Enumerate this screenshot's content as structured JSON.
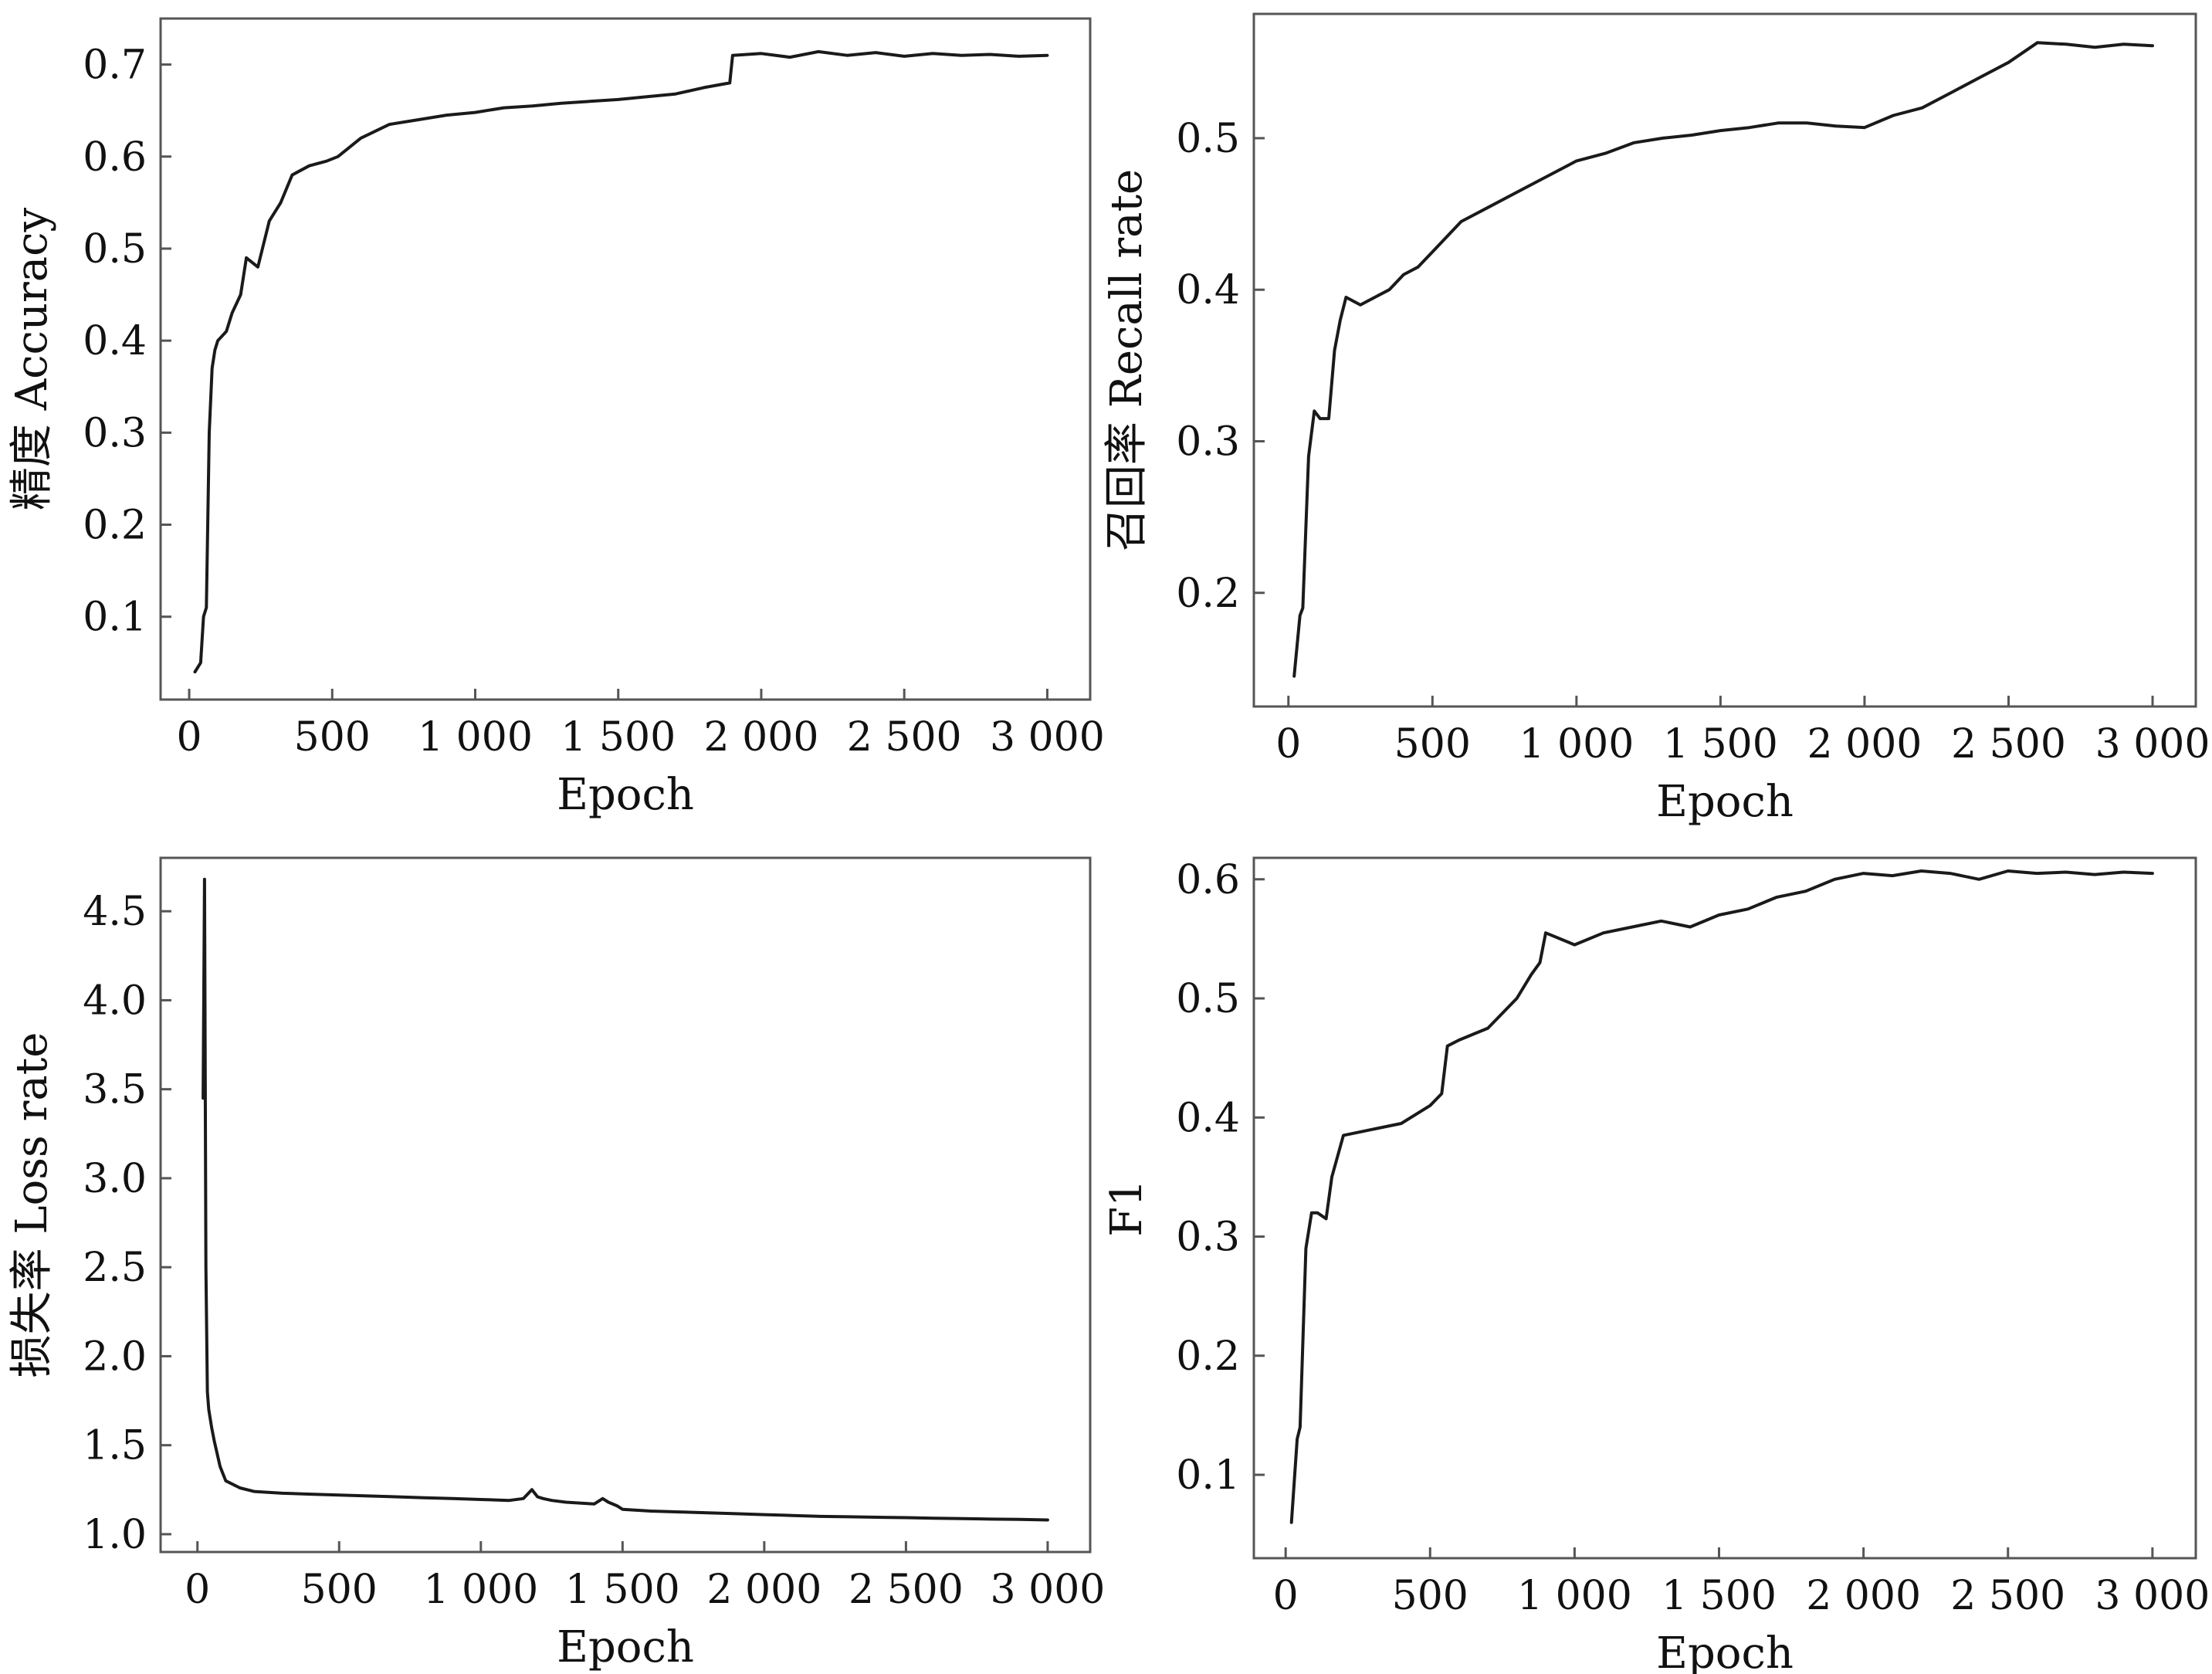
{
  "chart_data": [
    {
      "type": "line",
      "xlabel": "Epoch",
      "ylabel": "精度 Accuracy",
      "xlim": [
        -100,
        3150
      ],
      "ylim": [
        0.01,
        0.75
      ],
      "xticks": [
        0,
        500,
        1000,
        1500,
        2000,
        2500,
        3000
      ],
      "xtick_labels": [
        "0",
        "500",
        "1 000",
        "1 500",
        "2 000",
        "2 500",
        "3 000"
      ],
      "yticks": [
        0.1,
        0.2,
        0.3,
        0.4,
        0.5,
        0.6,
        0.7
      ],
      "ytick_labels": [
        "0.1",
        "0.2",
        "0.3",
        "0.4",
        "0.5",
        "0.6",
        "0.7"
      ],
      "grid": false,
      "line_color": "#1a1a1a",
      "x": [
        20,
        40,
        50,
        60,
        70,
        80,
        90,
        100,
        130,
        150,
        180,
        200,
        240,
        280,
        320,
        360,
        420,
        480,
        520,
        600,
        700,
        800,
        900,
        1000,
        1100,
        1200,
        1300,
        1400,
        1500,
        1600,
        1700,
        1800,
        1890,
        1900,
        2000,
        2100,
        2200,
        2300,
        2400,
        2500,
        2600,
        2700,
        2800,
        2900,
        3000
      ],
      "series": [
        {
          "values": [
            0.04,
            0.05,
            0.1,
            0.11,
            0.3,
            0.37,
            0.39,
            0.4,
            0.41,
            0.43,
            0.45,
            0.49,
            0.48,
            0.53,
            0.55,
            0.58,
            0.59,
            0.595,
            0.6,
            0.62,
            0.635,
            0.64,
            0.645,
            0.648,
            0.653,
            0.655,
            0.658,
            0.66,
            0.662,
            0.665,
            0.668,
            0.675,
            0.68,
            0.71,
            0.712,
            0.708,
            0.714,
            0.71,
            0.713,
            0.709,
            0.712,
            0.71,
            0.711,
            0.709,
            0.71
          ]
        }
      ]
    },
    {
      "type": "line",
      "xlabel": "Epoch",
      "ylabel": "召回率 Recall rate",
      "xlim": [
        -120,
        3150
      ],
      "ylim": [
        0.125,
        0.582
      ],
      "xticks": [
        0,
        500,
        1000,
        1500,
        2000,
        2500,
        3000
      ],
      "xtick_labels": [
        "0",
        "500",
        "1 000",
        "1 500",
        "2 000",
        "2 500",
        "3 000"
      ],
      "yticks": [
        0.2,
        0.3,
        0.4,
        0.5
      ],
      "ytick_labels": [
        "0.2",
        "0.3",
        "0.4",
        "0.5"
      ],
      "grid": false,
      "line_color": "#1a1a1a",
      "x": [
        20,
        40,
        50,
        70,
        90,
        110,
        140,
        160,
        180,
        200,
        250,
        300,
        350,
        400,
        450,
        500,
        550,
        600,
        700,
        800,
        900,
        1000,
        1100,
        1200,
        1300,
        1400,
        1500,
        1600,
        1700,
        1800,
        1900,
        2000,
        2100,
        2200,
        2300,
        2400,
        2500,
        2600,
        2700,
        2800,
        2900,
        3000
      ],
      "series": [
        {
          "values": [
            0.145,
            0.185,
            0.19,
            0.29,
            0.32,
            0.315,
            0.315,
            0.36,
            0.38,
            0.395,
            0.39,
            0.395,
            0.4,
            0.41,
            0.415,
            0.425,
            0.435,
            0.445,
            0.455,
            0.465,
            0.475,
            0.485,
            0.49,
            0.497,
            0.5,
            0.502,
            0.505,
            0.507,
            0.51,
            0.51,
            0.508,
            0.507,
            0.515,
            0.52,
            0.53,
            0.54,
            0.55,
            0.563,
            0.562,
            0.56,
            0.562,
            0.561
          ]
        }
      ]
    },
    {
      "type": "line",
      "xlabel": "Epoch",
      "ylabel": "损失率 Loss rate",
      "xlim": [
        -130,
        3150
      ],
      "ylim": [
        0.9,
        4.8
      ],
      "xticks": [
        0,
        500,
        1000,
        1500,
        2000,
        2500,
        3000
      ],
      "xtick_labels": [
        "0",
        "500",
        "1 000",
        "1 500",
        "2 000",
        "2 500",
        "3 000"
      ],
      "yticks": [
        1.0,
        1.5,
        2.0,
        2.5,
        3.0,
        3.5,
        4.0,
        4.5
      ],
      "ytick_labels": [
        "1.0",
        "1.5",
        "2.0",
        "2.5",
        "3.0",
        "3.5",
        "4.0",
        "4.5"
      ],
      "grid": false,
      "line_color": "#1a1a1a",
      "x": [
        20,
        25,
        30,
        35,
        40,
        50,
        60,
        80,
        100,
        150,
        200,
        300,
        400,
        500,
        600,
        700,
        800,
        900,
        1000,
        1100,
        1150,
        1180,
        1200,
        1220,
        1250,
        1300,
        1400,
        1430,
        1450,
        1480,
        1500,
        1600,
        1700,
        1800,
        1900,
        2000,
        2100,
        2200,
        2300,
        2400,
        2500,
        2600,
        2700,
        2800,
        2900,
        3000
      ],
      "series": [
        {
          "values": [
            3.45,
            4.68,
            2.5,
            1.8,
            1.7,
            1.6,
            1.52,
            1.38,
            1.3,
            1.26,
            1.24,
            1.23,
            1.225,
            1.22,
            1.215,
            1.21,
            1.205,
            1.2,
            1.195,
            1.19,
            1.2,
            1.25,
            1.21,
            1.2,
            1.19,
            1.18,
            1.17,
            1.2,
            1.18,
            1.16,
            1.14,
            1.13,
            1.125,
            1.12,
            1.115,
            1.11,
            1.105,
            1.1,
            1.098,
            1.095,
            1.093,
            1.09,
            1.088,
            1.085,
            1.083,
            1.08
          ]
        }
      ]
    },
    {
      "type": "line",
      "xlabel": "Epoch",
      "ylabel": "F1",
      "xlim": [
        -110,
        3150
      ],
      "ylim": [
        0.03,
        0.618
      ],
      "xticks": [
        0,
        500,
        1000,
        1500,
        2000,
        2500,
        3000
      ],
      "xtick_labels": [
        "0",
        "500",
        "1 000",
        "1 500",
        "2 000",
        "2 500",
        "3 000"
      ],
      "yticks": [
        0.1,
        0.2,
        0.3,
        0.4,
        0.5,
        0.6
      ],
      "ytick_labels": [
        "0.1",
        "0.2",
        "0.3",
        "0.4",
        "0.5",
        "0.6"
      ],
      "grid": false,
      "line_color": "#1a1a1a",
      "x": [
        20,
        40,
        50,
        70,
        90,
        110,
        140,
        160,
        200,
        300,
        400,
        500,
        540,
        560,
        600,
        700,
        800,
        850,
        880,
        900,
        1000,
        1100,
        1200,
        1300,
        1400,
        1500,
        1600,
        1700,
        1800,
        1900,
        2000,
        2100,
        2200,
        2300,
        2400,
        2500,
        2600,
        2700,
        2800,
        2900,
        3000
      ],
      "series": [
        {
          "values": [
            0.06,
            0.13,
            0.14,
            0.29,
            0.32,
            0.32,
            0.315,
            0.35,
            0.385,
            0.39,
            0.395,
            0.41,
            0.42,
            0.46,
            0.465,
            0.475,
            0.5,
            0.52,
            0.53,
            0.555,
            0.545,
            0.555,
            0.56,
            0.565,
            0.56,
            0.57,
            0.575,
            0.585,
            0.59,
            0.6,
            0.605,
            0.603,
            0.607,
            0.605,
            0.6,
            0.607,
            0.605,
            0.606,
            0.604,
            0.606,
            0.605
          ]
        }
      ]
    }
  ]
}
